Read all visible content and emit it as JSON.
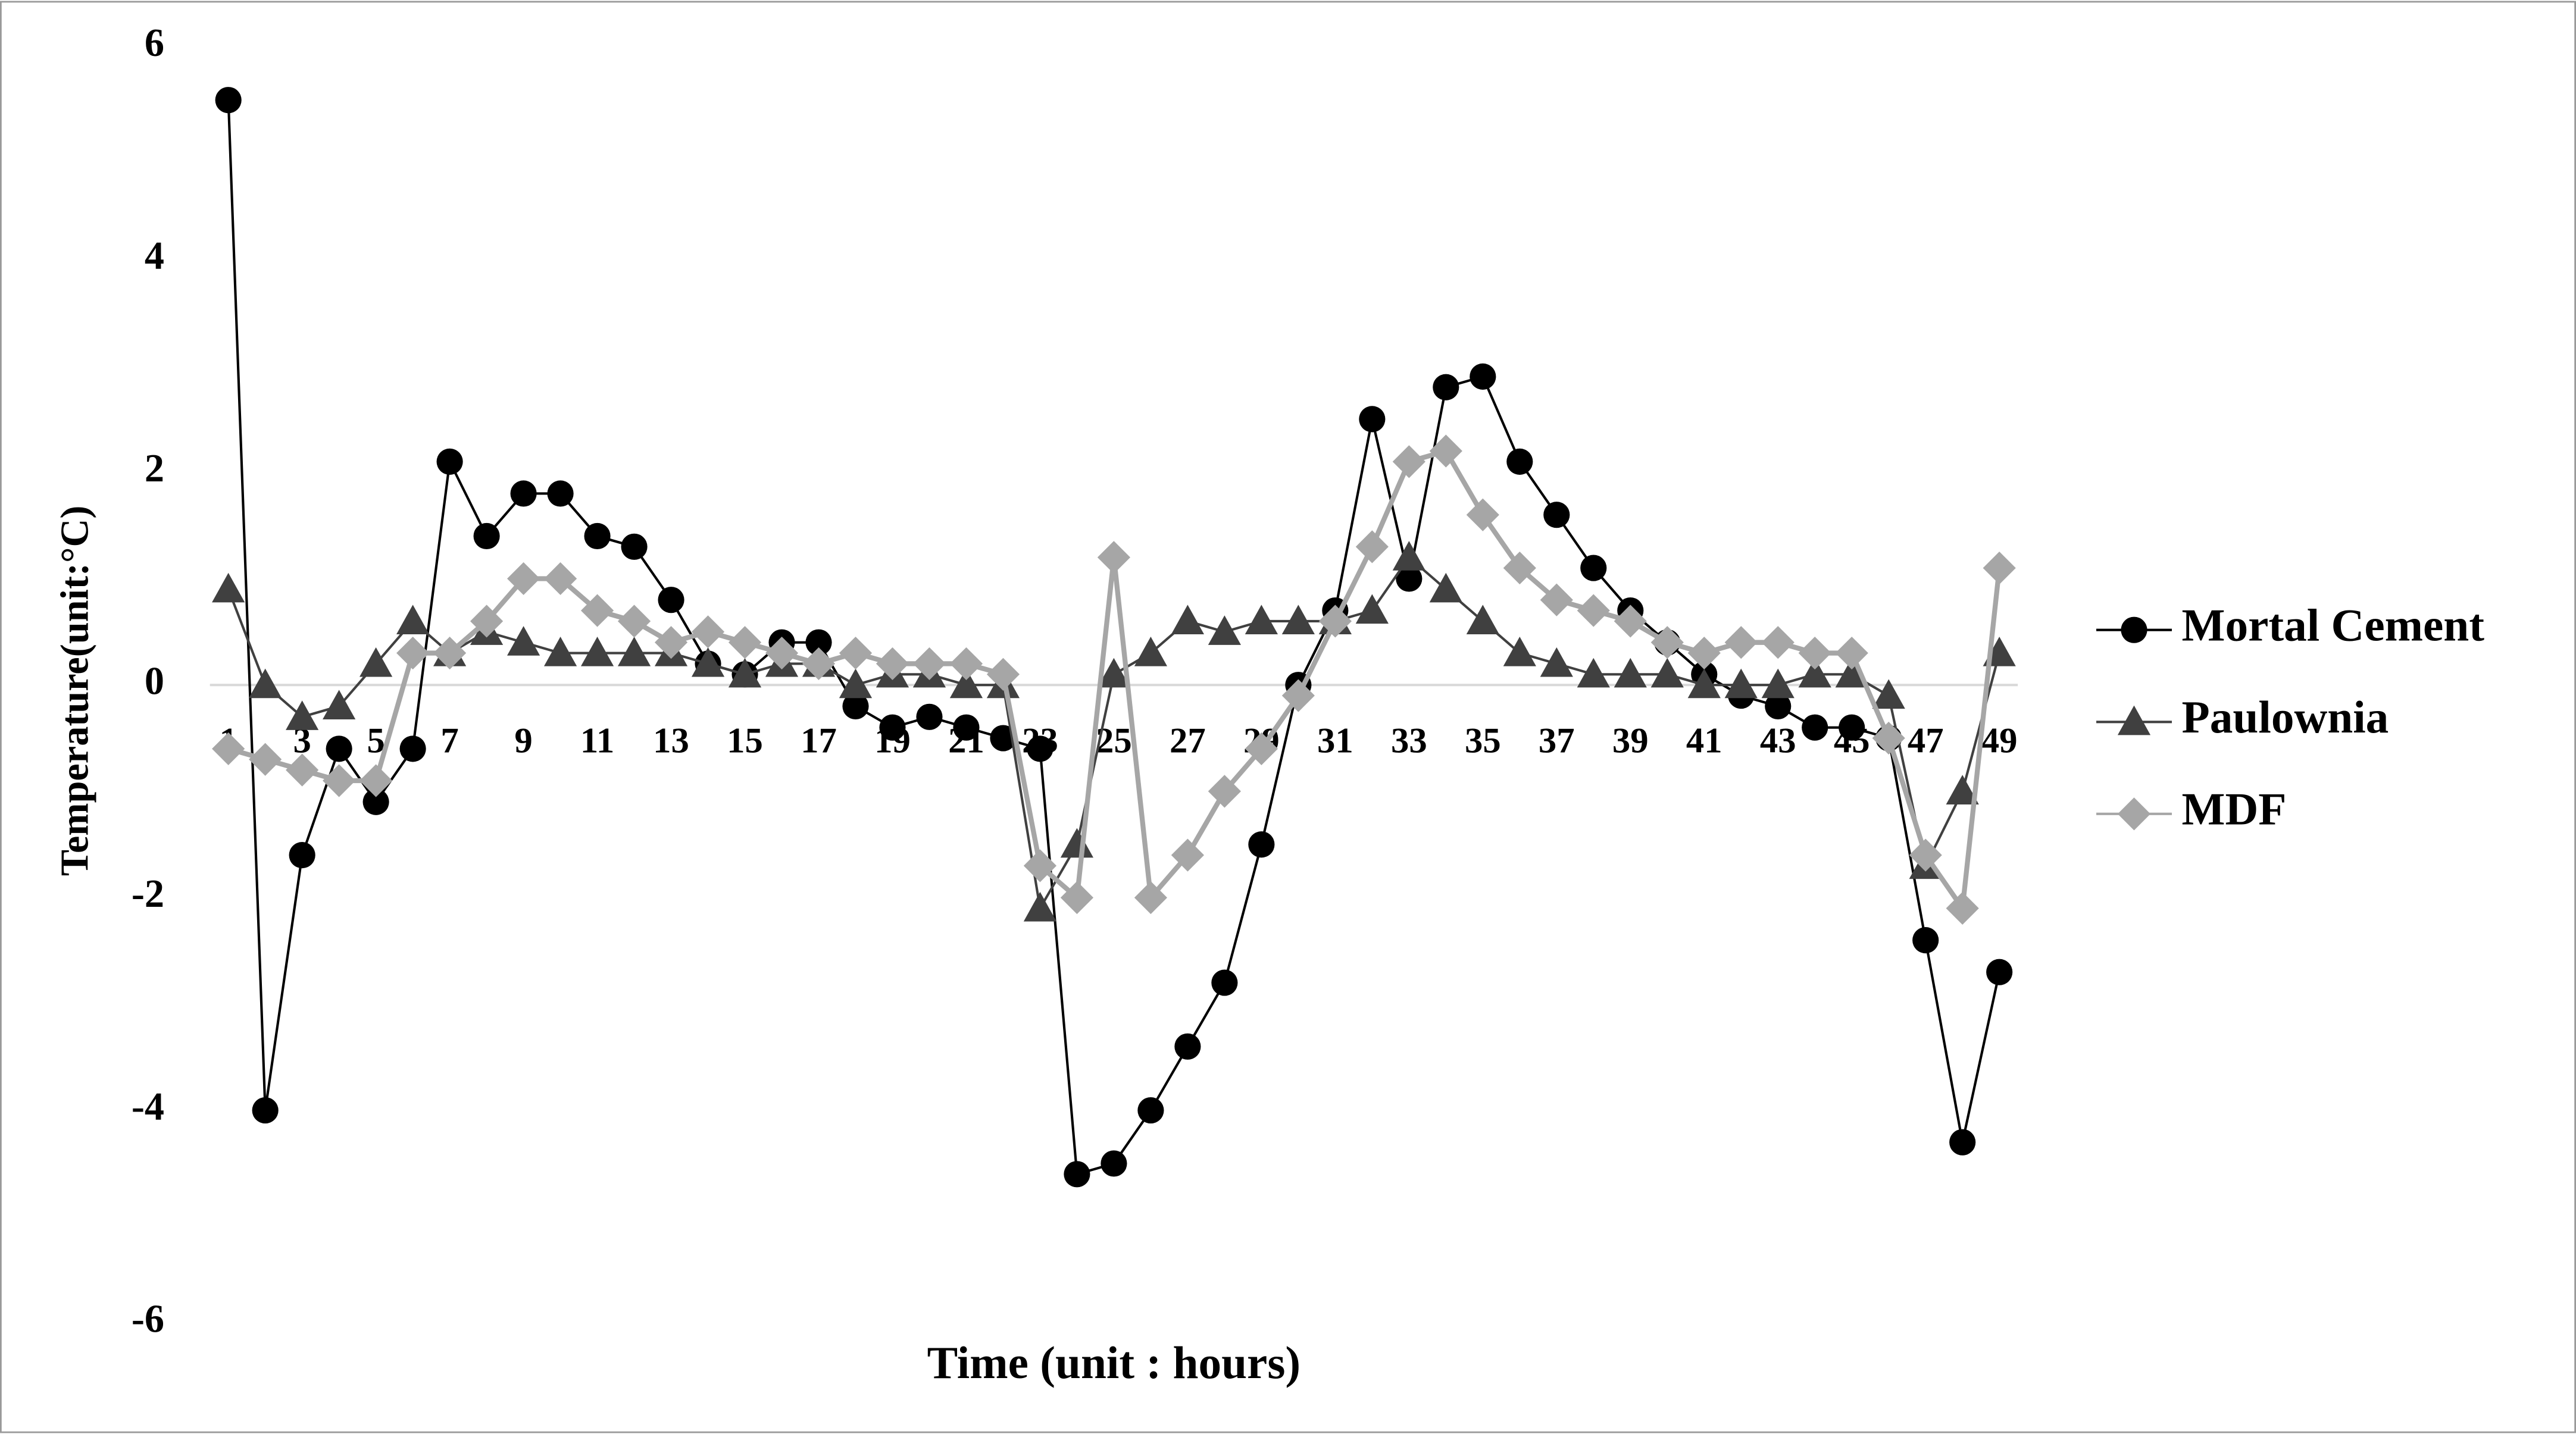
{
  "chart_data": {
    "type": "line",
    "x_label": "Time (unit : hours)",
    "y_label": "Temperature(unit:°C)",
    "categories": [
      "1",
      null,
      "3",
      null,
      "5",
      null,
      "7",
      null,
      "9",
      null,
      "11",
      null,
      "13",
      null,
      "15",
      null,
      "17",
      null,
      "19",
      null,
      "21",
      null,
      "23",
      null,
      "25",
      null,
      "27",
      null,
      "29",
      null,
      "31",
      null,
      "33",
      null,
      "35",
      null,
      "37",
      null,
      "39",
      null,
      "41",
      null,
      "43",
      null,
      "45",
      null,
      "47",
      null,
      "49"
    ],
    "ylim": [
      -6,
      6
    ],
    "yticks": [
      -6,
      -4,
      -2,
      0,
      2,
      4,
      6
    ],
    "zero_line": true,
    "legend": "right",
    "series": [
      {
        "name": "Mortal Cement",
        "color": "#000000",
        "marker": "circle",
        "values": [
          5.5,
          -4.0,
          -1.6,
          -0.6,
          -1.1,
          -0.6,
          2.1,
          1.4,
          1.8,
          1.8,
          1.4,
          1.3,
          0.8,
          0.2,
          0.1,
          0.4,
          0.4,
          -0.2,
          -0.4,
          -0.3,
          -0.4,
          -0.5,
          -0.6,
          -4.6,
          -4.5,
          -4.0,
          -3.4,
          -2.8,
          -1.5,
          0.0,
          0.7,
          2.5,
          1.0,
          2.8,
          2.9,
          2.1,
          1.6,
          1.1,
          0.7,
          0.4,
          0.1,
          -0.1,
          -0.2,
          -0.4,
          -0.4,
          -0.5,
          -2.4,
          -4.3,
          -2.7
        ]
      },
      {
        "name": "Paulownia",
        "color": "#404040",
        "marker": "triangle",
        "values": [
          0.9,
          0.0,
          -0.3,
          -0.2,
          0.2,
          0.6,
          0.3,
          0.5,
          0.4,
          0.3,
          0.3,
          0.3,
          0.3,
          0.2,
          0.1,
          0.2,
          0.2,
          0.0,
          0.1,
          0.1,
          0.0,
          0.0,
          -2.1,
          -1.5,
          0.1,
          0.3,
          0.6,
          0.5,
          0.6,
          0.6,
          0.6,
          0.7,
          1.2,
          0.9,
          0.6,
          0.3,
          0.2,
          0.1,
          0.1,
          0.1,
          0.0,
          0.0,
          0.0,
          0.1,
          0.1,
          -0.1,
          -1.7,
          -1.0,
          0.3
        ]
      },
      {
        "name": "MDF",
        "color": "#a6a6a6",
        "marker": "diamond",
        "values": [
          -0.6,
          -0.7,
          -0.8,
          -0.9,
          -0.9,
          0.3,
          0.3,
          0.6,
          1.0,
          1.0,
          0.7,
          0.6,
          0.4,
          0.5,
          0.4,
          0.3,
          0.2,
          0.3,
          0.2,
          0.2,
          0.2,
          0.1,
          -1.7,
          -2.0,
          1.2,
          -2.0,
          -1.6,
          -1.0,
          -0.6,
          -0.1,
          0.6,
          1.3,
          2.1,
          2.2,
          1.6,
          1.1,
          0.8,
          0.7,
          0.6,
          0.4,
          0.3,
          0.4,
          0.4,
          0.3,
          0.3,
          -0.5,
          -1.6,
          -2.1,
          1.1
        ]
      }
    ]
  }
}
